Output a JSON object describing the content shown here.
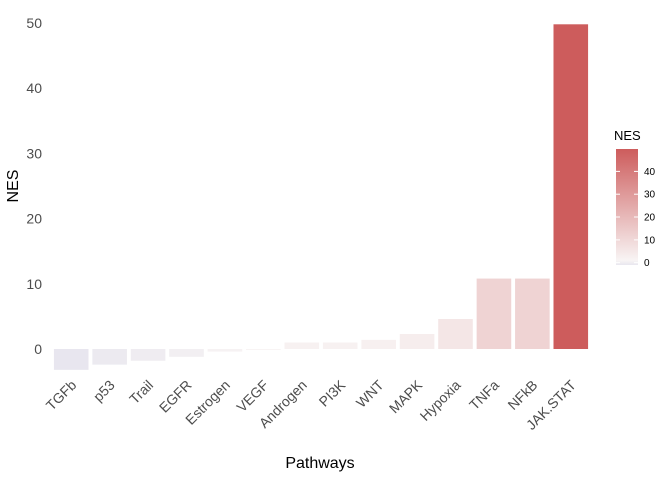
{
  "chart_data": {
    "type": "bar",
    "xlabel": "Pathways",
    "ylabel": "NES",
    "categories": [
      "TGFb",
      "p53",
      "Trail",
      "EGFR",
      "Estrogen",
      "VEGF",
      "Androgen",
      "PI3K",
      "WNT",
      "MAPK",
      "Hypoxia",
      "TNFa",
      "NFkB",
      "JAK.STAT"
    ],
    "values": [
      -3.2,
      -2.4,
      -1.8,
      -1.2,
      -0.4,
      -0.1,
      1.0,
      1.0,
      1.4,
      2.3,
      4.6,
      10.8,
      10.8,
      49.8
    ],
    "ylim": [
      -4.5,
      52
    ],
    "yticks": [
      0,
      10,
      20,
      30,
      40,
      50
    ],
    "grid": false,
    "legend": {
      "title": "NES",
      "position": "right",
      "ticks": [
        0,
        10,
        20,
        30,
        40
      ],
      "range": [
        -1,
        49.8
      ]
    },
    "colors": {
      "low": "#e8e6ef",
      "mid": "#f8f4f4",
      "high": "#cd5c5c"
    }
  }
}
